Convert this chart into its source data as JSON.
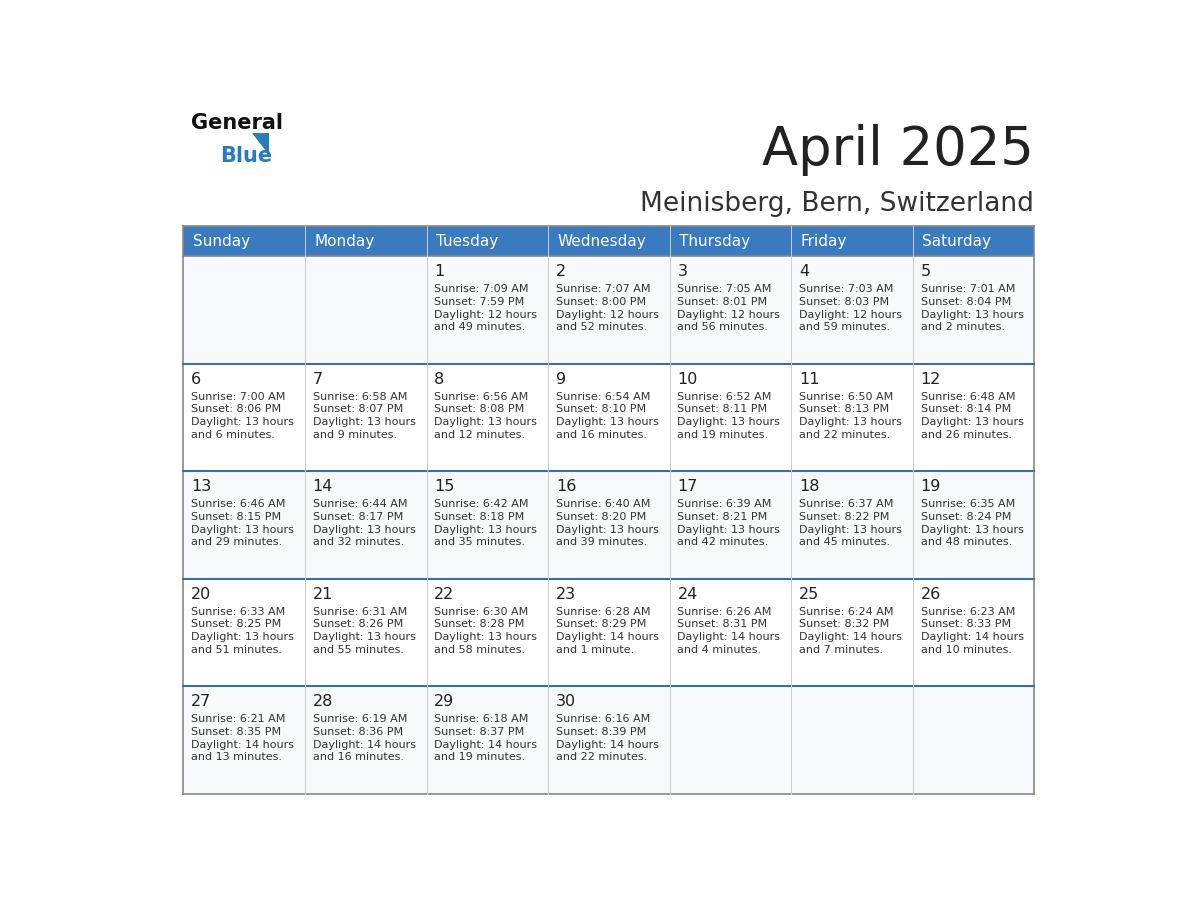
{
  "title": "April 2025",
  "subtitle": "Meinisberg, Bern, Switzerland",
  "header_bg_color": "#3a7abf",
  "header_text_color": "#ffffff",
  "day_names": [
    "Sunday",
    "Monday",
    "Tuesday",
    "Wednesday",
    "Thursday",
    "Friday",
    "Saturday"
  ],
  "cell_bg": "#f7f9fc",
  "cell_bg_alt": "#ffffff",
  "title_color": "#222222",
  "subtitle_color": "#333333",
  "day_number_color": "#222222",
  "info_color": "#333333",
  "row_divider_color": "#3a6fa0",
  "outer_border_color": "#aaaaaa",
  "logo_general_color": "#111111",
  "logo_blue_color": "#2a7abf",
  "weeks": [
    [
      {
        "day": null,
        "info": ""
      },
      {
        "day": null,
        "info": ""
      },
      {
        "day": "1",
        "info": "Sunrise: 7:09 AM\nSunset: 7:59 PM\nDaylight: 12 hours\nand 49 minutes."
      },
      {
        "day": "2",
        "info": "Sunrise: 7:07 AM\nSunset: 8:00 PM\nDaylight: 12 hours\nand 52 minutes."
      },
      {
        "day": "3",
        "info": "Sunrise: 7:05 AM\nSunset: 8:01 PM\nDaylight: 12 hours\nand 56 minutes."
      },
      {
        "day": "4",
        "info": "Sunrise: 7:03 AM\nSunset: 8:03 PM\nDaylight: 12 hours\nand 59 minutes."
      },
      {
        "day": "5",
        "info": "Sunrise: 7:01 AM\nSunset: 8:04 PM\nDaylight: 13 hours\nand 2 minutes."
      }
    ],
    [
      {
        "day": "6",
        "info": "Sunrise: 7:00 AM\nSunset: 8:06 PM\nDaylight: 13 hours\nand 6 minutes."
      },
      {
        "day": "7",
        "info": "Sunrise: 6:58 AM\nSunset: 8:07 PM\nDaylight: 13 hours\nand 9 minutes."
      },
      {
        "day": "8",
        "info": "Sunrise: 6:56 AM\nSunset: 8:08 PM\nDaylight: 13 hours\nand 12 minutes."
      },
      {
        "day": "9",
        "info": "Sunrise: 6:54 AM\nSunset: 8:10 PM\nDaylight: 13 hours\nand 16 minutes."
      },
      {
        "day": "10",
        "info": "Sunrise: 6:52 AM\nSunset: 8:11 PM\nDaylight: 13 hours\nand 19 minutes."
      },
      {
        "day": "11",
        "info": "Sunrise: 6:50 AM\nSunset: 8:13 PM\nDaylight: 13 hours\nand 22 minutes."
      },
      {
        "day": "12",
        "info": "Sunrise: 6:48 AM\nSunset: 8:14 PM\nDaylight: 13 hours\nand 26 minutes."
      }
    ],
    [
      {
        "day": "13",
        "info": "Sunrise: 6:46 AM\nSunset: 8:15 PM\nDaylight: 13 hours\nand 29 minutes."
      },
      {
        "day": "14",
        "info": "Sunrise: 6:44 AM\nSunset: 8:17 PM\nDaylight: 13 hours\nand 32 minutes."
      },
      {
        "day": "15",
        "info": "Sunrise: 6:42 AM\nSunset: 8:18 PM\nDaylight: 13 hours\nand 35 minutes."
      },
      {
        "day": "16",
        "info": "Sunrise: 6:40 AM\nSunset: 8:20 PM\nDaylight: 13 hours\nand 39 minutes."
      },
      {
        "day": "17",
        "info": "Sunrise: 6:39 AM\nSunset: 8:21 PM\nDaylight: 13 hours\nand 42 minutes."
      },
      {
        "day": "18",
        "info": "Sunrise: 6:37 AM\nSunset: 8:22 PM\nDaylight: 13 hours\nand 45 minutes."
      },
      {
        "day": "19",
        "info": "Sunrise: 6:35 AM\nSunset: 8:24 PM\nDaylight: 13 hours\nand 48 minutes."
      }
    ],
    [
      {
        "day": "20",
        "info": "Sunrise: 6:33 AM\nSunset: 8:25 PM\nDaylight: 13 hours\nand 51 minutes."
      },
      {
        "day": "21",
        "info": "Sunrise: 6:31 AM\nSunset: 8:26 PM\nDaylight: 13 hours\nand 55 minutes."
      },
      {
        "day": "22",
        "info": "Sunrise: 6:30 AM\nSunset: 8:28 PM\nDaylight: 13 hours\nand 58 minutes."
      },
      {
        "day": "23",
        "info": "Sunrise: 6:28 AM\nSunset: 8:29 PM\nDaylight: 14 hours\nand 1 minute."
      },
      {
        "day": "24",
        "info": "Sunrise: 6:26 AM\nSunset: 8:31 PM\nDaylight: 14 hours\nand 4 minutes."
      },
      {
        "day": "25",
        "info": "Sunrise: 6:24 AM\nSunset: 8:32 PM\nDaylight: 14 hours\nand 7 minutes."
      },
      {
        "day": "26",
        "info": "Sunrise: 6:23 AM\nSunset: 8:33 PM\nDaylight: 14 hours\nand 10 minutes."
      }
    ],
    [
      {
        "day": "27",
        "info": "Sunrise: 6:21 AM\nSunset: 8:35 PM\nDaylight: 14 hours\nand 13 minutes."
      },
      {
        "day": "28",
        "info": "Sunrise: 6:19 AM\nSunset: 8:36 PM\nDaylight: 14 hours\nand 16 minutes."
      },
      {
        "day": "29",
        "info": "Sunrise: 6:18 AM\nSunset: 8:37 PM\nDaylight: 14 hours\nand 19 minutes."
      },
      {
        "day": "30",
        "info": "Sunrise: 6:16 AM\nSunset: 8:39 PM\nDaylight: 14 hours\nand 22 minutes."
      },
      {
        "day": null,
        "info": ""
      },
      {
        "day": null,
        "info": ""
      },
      {
        "day": null,
        "info": ""
      }
    ]
  ]
}
